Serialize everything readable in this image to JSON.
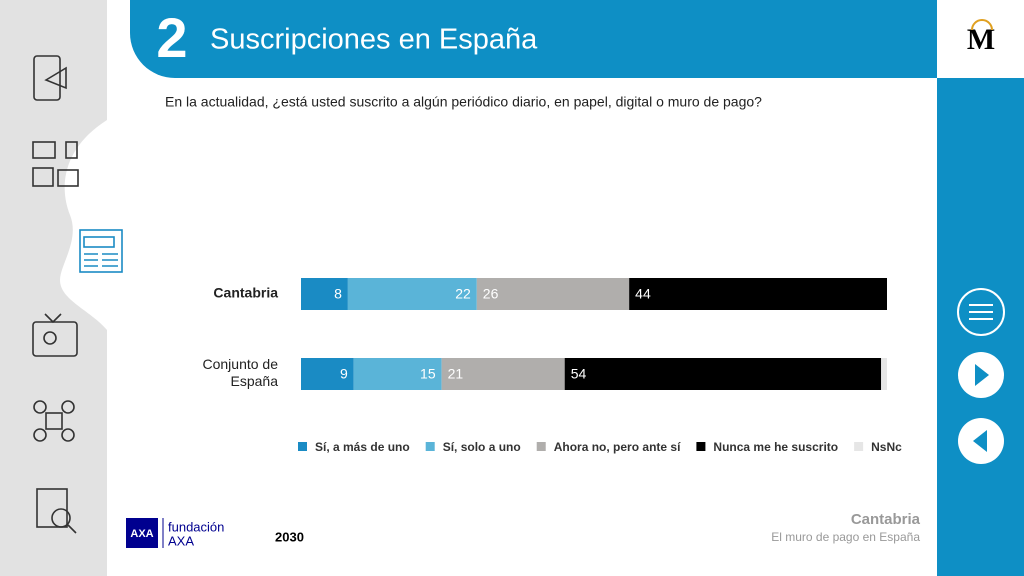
{
  "header": {
    "number": "2",
    "title": "Suscripciones en España",
    "logo": "M"
  },
  "question": "En la actualidad, ¿está usted suscrito a algún periódico diario, en papel, digital o muro de pago?",
  "footer": {
    "region": "Cantabria",
    "subtitle": "El muro de pago en España",
    "sponsor_top": "fundación",
    "sponsor_bottom": "AXA",
    "sponsor_mark": "AXA",
    "year": "2030"
  },
  "chart_data": {
    "type": "bar",
    "orientation": "horizontal",
    "stacked": true,
    "categories": [
      "Cantabria",
      "Conjunto de España"
    ],
    "xlim": [
      0,
      100
    ],
    "legend": "bottom",
    "series": [
      {
        "name": "Sí, a más de uno",
        "color": "#1a8bc4",
        "values": [
          8,
          9
        ]
      },
      {
        "name": "Sí, solo a uno",
        "color": "#5ab4d8",
        "values": [
          22,
          15
        ]
      },
      {
        "name": "Ahora no, pero ante sí",
        "color": "#b0aeac",
        "values": [
          26,
          21
        ]
      },
      {
        "name": "Nunca me he suscrito",
        "color": "#000000",
        "values": [
          44,
          54
        ]
      },
      {
        "name": "NsNc",
        "color": "#e6e6e6",
        "values": [
          0,
          1
        ]
      }
    ]
  }
}
